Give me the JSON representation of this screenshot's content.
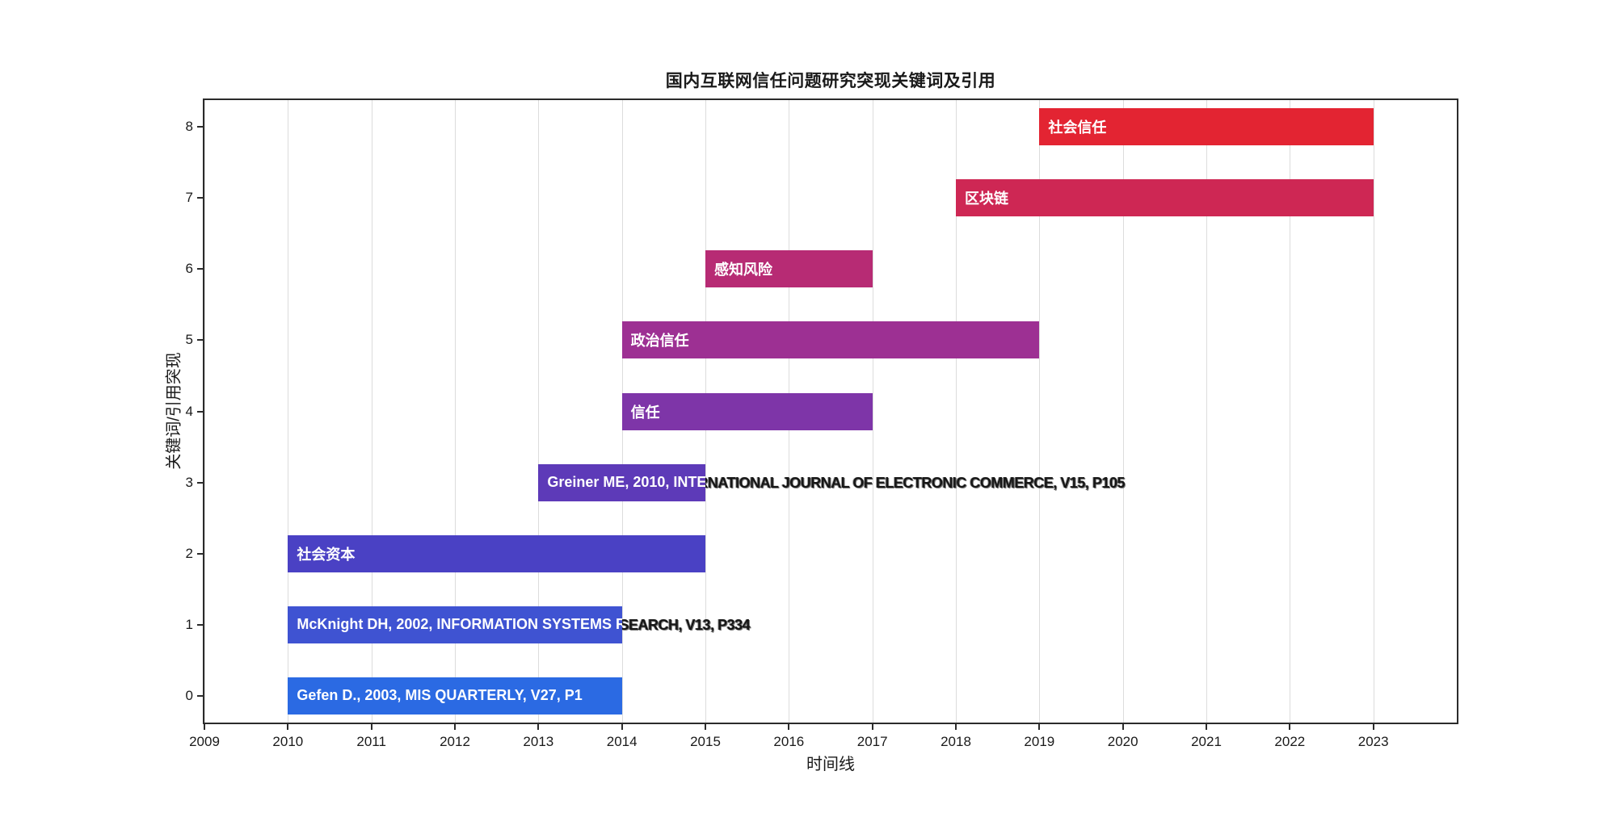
{
  "chart_data": {
    "type": "bar",
    "subtype": "horizontal-gantt-burst-timeline",
    "title": "国内互联网信任问题研究突现关键词及引用",
    "xlabel": "时间线",
    "ylabel": "关键词/引用突现",
    "xlim": [
      2009,
      2024
    ],
    "ylim": [
      -0.38,
      8.38
    ],
    "x_ticks": [
      2009,
      2010,
      2011,
      2012,
      2013,
      2014,
      2015,
      2016,
      2017,
      2018,
      2019,
      2020,
      2021,
      2022,
      2023
    ],
    "y_ticks": [
      0,
      1,
      2,
      3,
      4,
      5,
      6,
      7,
      8
    ],
    "grid": "vertical",
    "legend": "none",
    "bars": [
      {
        "y": 0,
        "label": "Gefen D., 2003, MIS QUARTERLY, V27, P1",
        "start": 2010,
        "end": 2014,
        "color": "#2b6ae3",
        "label_overflows": false
      },
      {
        "y": 1,
        "label": "McKnight DH, 2002, INFORMATION SYSTEMS RESEARCH, V13, P334",
        "start": 2010,
        "end": 2014,
        "color": "#3f53d2",
        "label_overflows": true
      },
      {
        "y": 2,
        "label": "社会资本",
        "start": 2010,
        "end": 2015,
        "color": "#4a41c4",
        "label_overflows": false
      },
      {
        "y": 3,
        "label": "Greiner ME, 2010, INTERNATIONAL JOURNAL OF ELECTRONIC COMMERCE, V15, P105",
        "start": 2013,
        "end": 2015,
        "color": "#5d3ab8",
        "label_overflows": true
      },
      {
        "y": 4,
        "label": "信任",
        "start": 2014,
        "end": 2017,
        "color": "#7e35a8",
        "label_overflows": false
      },
      {
        "y": 5,
        "label": "政治信任",
        "start": 2014,
        "end": 2019,
        "color": "#9d3093",
        "label_overflows": false
      },
      {
        "y": 6,
        "label": "感知风险",
        "start": 2015,
        "end": 2017,
        "color": "#b72b74",
        "label_overflows": false
      },
      {
        "y": 7,
        "label": "区块链",
        "start": 2018,
        "end": 2023,
        "color": "#ce2754",
        "label_overflows": false
      },
      {
        "y": 8,
        "label": "社会信任",
        "start": 2019,
        "end": 2023,
        "color": "#e32432",
        "label_overflows": false
      }
    ]
  }
}
